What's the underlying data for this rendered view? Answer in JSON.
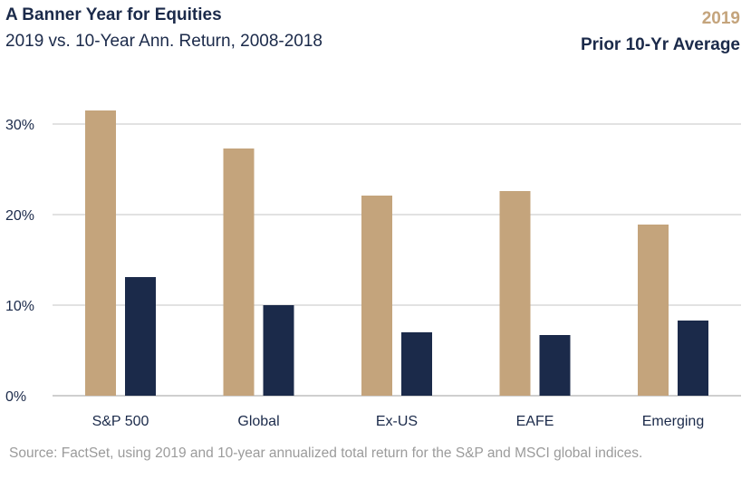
{
  "header": {
    "title": "A Banner Year for Equities",
    "subtitle": "2019 vs. 10-Year Ann. Return, 2008-2018"
  },
  "footer": {
    "source": "Source: FactSet, using 2019 and 10-year annualized total return for the S&P and MSCI global indices."
  },
  "colors": {
    "series_2019": "#c4a47c",
    "series_avg": "#1b2a4a",
    "grid": "#d9d9d9",
    "text": "#1b2a4a"
  },
  "chart_data": {
    "type": "bar",
    "categories": [
      "S&P 500",
      "Global",
      "Ex-US",
      "EAFE",
      "Emerging"
    ],
    "series": [
      {
        "name": "2019",
        "values": [
          31.5,
          27.3,
          22.1,
          22.6,
          18.9
        ]
      },
      {
        "name": "Prior 10-Yr Average",
        "values": [
          13.1,
          10.0,
          7.0,
          6.7,
          8.3
        ]
      }
    ],
    "yticks": [
      0,
      10,
      20,
      30
    ],
    "ytick_labels": [
      "0%",
      "10%",
      "20%",
      "30%"
    ],
    "ylim": [
      0,
      32
    ],
    "grid": true,
    "legend_position": "top-right"
  }
}
